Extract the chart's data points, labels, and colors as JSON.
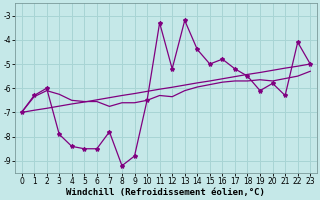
{
  "xlabel": "Windchill (Refroidissement éolien,°C)",
  "background_color": "#c5e8e8",
  "grid_color": "#a8d4d4",
  "line_color": "#800080",
  "x": [
    0,
    1,
    2,
    3,
    4,
    5,
    6,
    7,
    8,
    9,
    10,
    11,
    12,
    13,
    14,
    15,
    16,
    17,
    18,
    19,
    20,
    21,
    22,
    23
  ],
  "y_jagged": [
    -7.0,
    -6.3,
    -6.0,
    -7.9,
    -8.4,
    -8.5,
    -8.5,
    -7.8,
    -9.2,
    -8.8,
    -6.5,
    -3.3,
    -5.2,
    -3.2,
    -4.4,
    -5.0,
    -4.8,
    -5.2,
    -5.5,
    -6.1,
    -5.8,
    -6.3,
    -4.1,
    -5.0
  ],
  "y_smooth": [
    -7.0,
    -6.35,
    -6.1,
    -6.25,
    -6.5,
    -6.55,
    -6.55,
    -6.75,
    -6.6,
    -6.6,
    -6.5,
    -6.3,
    -6.35,
    -6.1,
    -5.95,
    -5.85,
    -5.75,
    -5.7,
    -5.7,
    -5.65,
    -5.7,
    -5.6,
    -5.5,
    -5.3
  ],
  "y_trend": [
    -7.0,
    -6.91,
    -6.83,
    -6.74,
    -6.65,
    -6.57,
    -6.48,
    -6.39,
    -6.3,
    -6.22,
    -6.13,
    -6.04,
    -5.96,
    -5.87,
    -5.78,
    -5.7,
    -5.61,
    -5.52,
    -5.43,
    -5.35,
    -5.26,
    -5.17,
    -5.09,
    -5.0
  ],
  "ylim": [
    -9.5,
    -2.5
  ],
  "xlim": [
    -0.5,
    23.5
  ],
  "yticks": [
    -9,
    -8,
    -7,
    -6,
    -5,
    -4,
    -3
  ],
  "xticks": [
    0,
    1,
    2,
    3,
    4,
    5,
    6,
    7,
    8,
    9,
    10,
    11,
    12,
    13,
    14,
    15,
    16,
    17,
    18,
    19,
    20,
    21,
    22,
    23
  ],
  "tick_fontsize": 5.5,
  "xlabel_fontsize": 6.5,
  "marker": "*",
  "linewidth": 0.9,
  "markersize": 3.0
}
